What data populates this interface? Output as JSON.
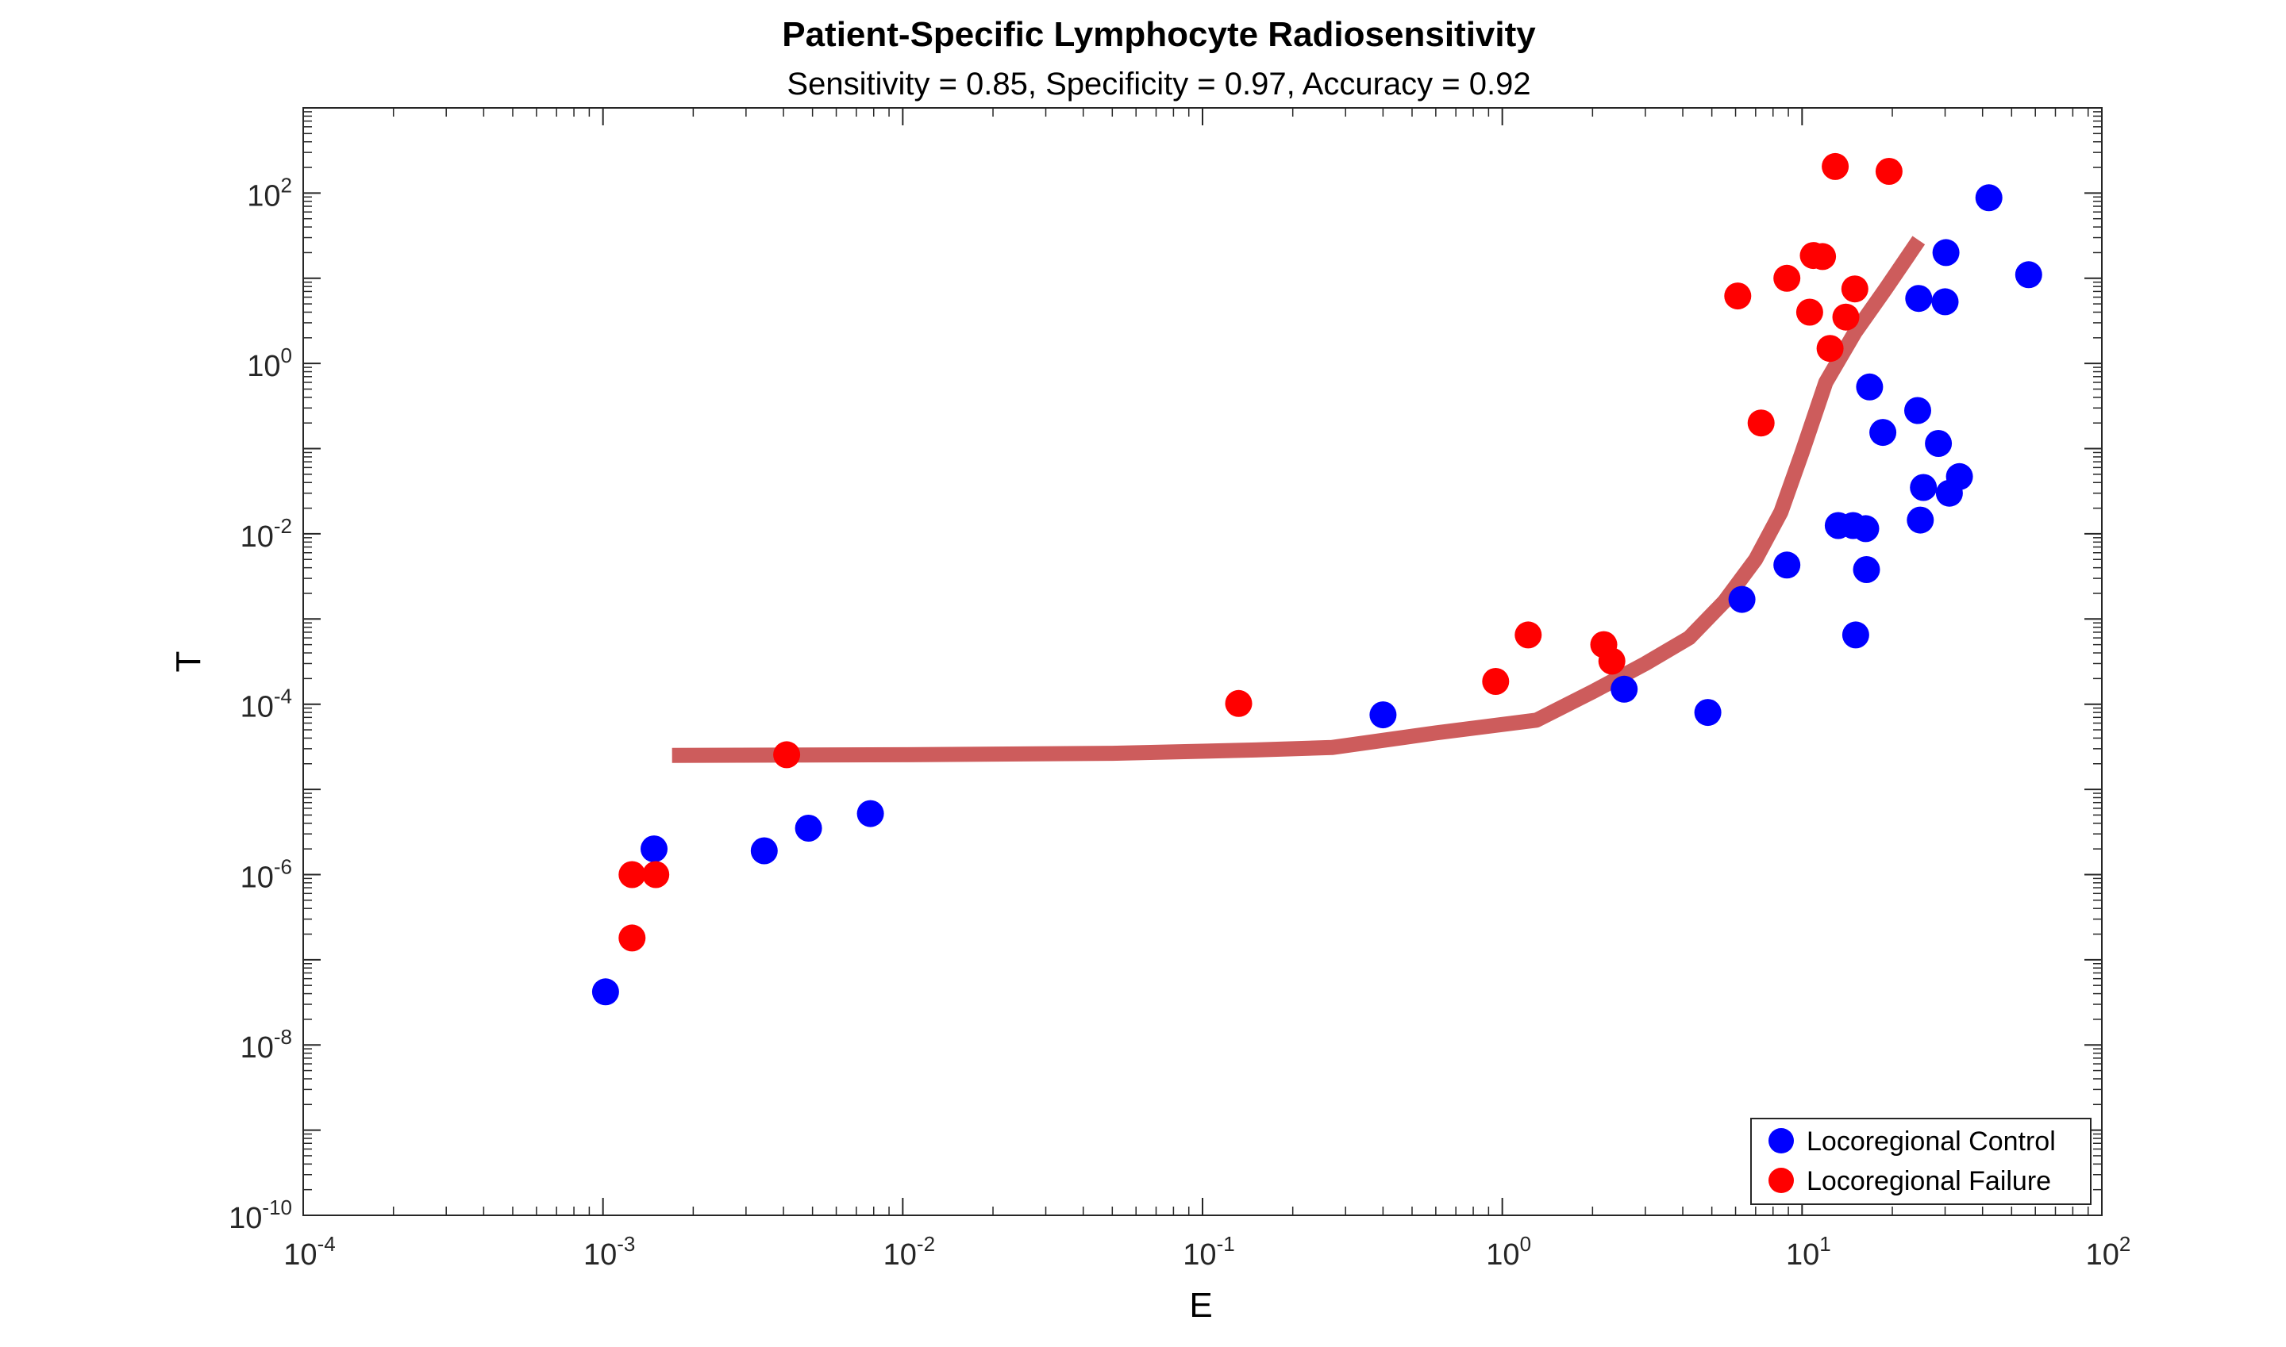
{
  "chart_data": {
    "type": "scatter",
    "title": "Patient-Specific Lymphocyte Radiosensitivity",
    "subtitle": "Sensitivity = 0.85, Specificity = 0.97, Accuracy = 0.92",
    "xlabel": "E",
    "ylabel": "T",
    "xscale": "log",
    "yscale": "log",
    "xlim": [
      0.0001,
      100
    ],
    "ylim": [
      1e-10,
      1000
    ],
    "grid": false,
    "legend_position": "bottom-right",
    "x_ticks": [
      {
        "base": "10",
        "exp": "-4",
        "value": 0.0001
      },
      {
        "base": "10",
        "exp": "-3",
        "value": 0.001
      },
      {
        "base": "10",
        "exp": "-2",
        "value": 0.01
      },
      {
        "base": "10",
        "exp": "-1",
        "value": 0.1
      },
      {
        "base": "10",
        "exp": "0",
        "value": 1
      },
      {
        "base": "10",
        "exp": "1",
        "value": 10
      },
      {
        "base": "10",
        "exp": "2",
        "value": 100
      }
    ],
    "y_ticks": [
      {
        "base": "10",
        "exp": "-10",
        "value": 1e-10
      },
      {
        "base": "10",
        "exp": "-8",
        "value": 1e-08
      },
      {
        "base": "10",
        "exp": "-6",
        "value": 1e-06
      },
      {
        "base": "10",
        "exp": "-4",
        "value": 0.0001
      },
      {
        "base": "10",
        "exp": "-2",
        "value": 0.01
      },
      {
        "base": "10",
        "exp": "0",
        "value": 1
      },
      {
        "base": "10",
        "exp": "2",
        "value": 100
      }
    ],
    "series": [
      {
        "name": "Locoregional Control",
        "color": "#0000ff",
        "points": [
          [
            0.00102,
            4.2e-08
          ],
          [
            0.00148,
            2e-06
          ],
          [
            0.00345,
            1.9e-06
          ],
          [
            0.00485,
            3.5e-06
          ],
          [
            0.0078,
            5.2e-06
          ],
          [
            0.4,
            7.5e-05
          ],
          [
            2.55,
            0.00015
          ],
          [
            4.85,
            8e-05
          ],
          [
            6.3,
            0.0017
          ],
          [
            8.9,
            0.0043
          ],
          [
            13.2,
            0.0125
          ],
          [
            14.8,
            0.0125
          ],
          [
            16.3,
            0.0115
          ],
          [
            15.1,
            0.00065
          ],
          [
            16.4,
            0.0038
          ],
          [
            16.8,
            0.53
          ],
          [
            18.6,
            0.155
          ],
          [
            24.3,
            0.28
          ],
          [
            24.8,
            0.0145
          ],
          [
            25.4,
            0.035
          ],
          [
            28.5,
            0.115
          ],
          [
            31.0,
            0.03
          ],
          [
            33.5,
            0.047
          ],
          [
            24.5,
            5.8
          ],
          [
            30.0,
            5.3
          ],
          [
            30.2,
            20.0
          ],
          [
            42.0,
            88.0
          ],
          [
            57.0,
            11.0
          ]
        ]
      },
      {
        "name": "Locoregional Failure",
        "color": "#ff0000",
        "points": [
          [
            0.00125,
            1e-06
          ],
          [
            0.0015,
            1e-06
          ],
          [
            0.00125,
            1.8e-07
          ],
          [
            0.0041,
            2.55e-05
          ],
          [
            0.132,
            0.000102
          ],
          [
            0.95,
            0.000185
          ],
          [
            1.22,
            0.00065
          ],
          [
            2.18,
            0.0005
          ],
          [
            2.32,
            0.00032
          ],
          [
            6.1,
            6.2
          ],
          [
            7.3,
            0.2
          ],
          [
            8.9,
            10.0
          ],
          [
            10.6,
            4.0
          ],
          [
            10.9,
            18.5
          ],
          [
            11.7,
            18.0
          ],
          [
            12.4,
            1.5
          ],
          [
            12.9,
            205.0
          ],
          [
            14.0,
            3.5
          ],
          [
            15.0,
            7.5
          ],
          [
            19.5,
            180.0
          ]
        ]
      }
    ],
    "fit_line": {
      "color": "#cd5c5c",
      "points": [
        [
          0.0017,
          2.5e-05
        ],
        [
          0.01,
          2.55e-05
        ],
        [
          0.05,
          2.65e-05
        ],
        [
          0.15,
          2.9e-05
        ],
        [
          0.27,
          3.1e-05
        ],
        [
          0.6,
          4.6e-05
        ],
        [
          1.3,
          6.5e-05
        ],
        [
          2.0,
          0.00014
        ],
        [
          3.0,
          0.0003
        ],
        [
          4.2,
          0.0006
        ],
        [
          5.5,
          0.0016
        ],
        [
          7.0,
          0.005
        ],
        [
          8.5,
          0.018
        ],
        [
          10.0,
          0.09
        ],
        [
          12.0,
          0.6
        ],
        [
          15.0,
          2.3
        ],
        [
          19.0,
          7.5
        ],
        [
          24.5,
          28.0
        ]
      ]
    }
  }
}
